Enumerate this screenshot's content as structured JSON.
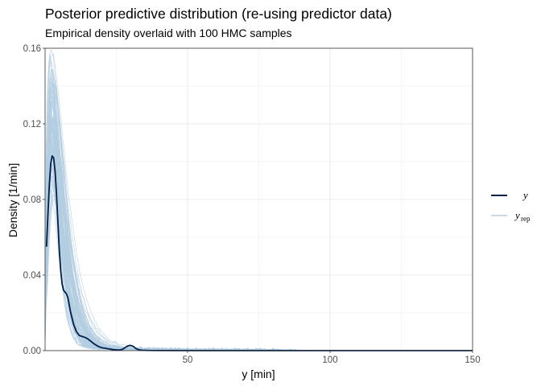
{
  "chart_data": {
    "type": "line",
    "title": "Posterior predictive distribution (re-using predictor data)",
    "subtitle": "Empirical density overlaid with 100 HMC samples",
    "xlabel": "y [min]",
    "ylabel": "Density [1/min]",
    "xlim": [
      0,
      150
    ],
    "ylim": [
      0,
      0.16
    ],
    "x_ticks": [
      50,
      100,
      150
    ],
    "x_tick_labels": [
      "50",
      "100",
      "150"
    ],
    "y_ticks": [
      0,
      0.04,
      0.08,
      0.12,
      0.16
    ],
    "y_tick_labels": [
      "0.00",
      "0.04",
      "0.08",
      "0.12",
      "0.16"
    ],
    "grid": true,
    "legend_position": "right",
    "legend": [
      {
        "key": "y",
        "label": "y",
        "sub": "",
        "color": "#011f4b"
      },
      {
        "key": "yrep",
        "label": "y",
        "sub": "rep",
        "color": "#b3cde0"
      }
    ],
    "colors": {
      "y": "#011f4b",
      "yrep": "#b3cde0",
      "grid": "#ebebeb",
      "panel_border": "#333333"
    },
    "series_y": {
      "x": [
        0.5,
        1,
        1.5,
        2,
        2.5,
        3,
        3.5,
        4,
        4.5,
        5,
        5.5,
        6,
        6.5,
        7,
        7.5,
        8,
        9,
        10,
        11,
        12,
        13,
        14,
        15,
        16,
        17,
        18,
        19,
        20,
        22,
        24,
        26,
        27,
        28,
        29,
        30,
        31,
        32,
        33,
        34,
        36,
        40,
        50,
        60,
        80,
        100,
        120,
        150
      ],
      "y": [
        0.055,
        0.072,
        0.088,
        0.099,
        0.103,
        0.102,
        0.095,
        0.083,
        0.068,
        0.053,
        0.042,
        0.035,
        0.032,
        0.031,
        0.03,
        0.028,
        0.02,
        0.014,
        0.01,
        0.008,
        0.0075,
        0.007,
        0.0062,
        0.005,
        0.0038,
        0.0028,
        0.002,
        0.0015,
        0.001,
        0.0005,
        0.0003,
        0.0006,
        0.0015,
        0.0025,
        0.0028,
        0.0022,
        0.001,
        0.0004,
        0.0002,
        0.0001,
        5e-05,
        0,
        0,
        0,
        0,
        0,
        0
      ]
    }
  }
}
